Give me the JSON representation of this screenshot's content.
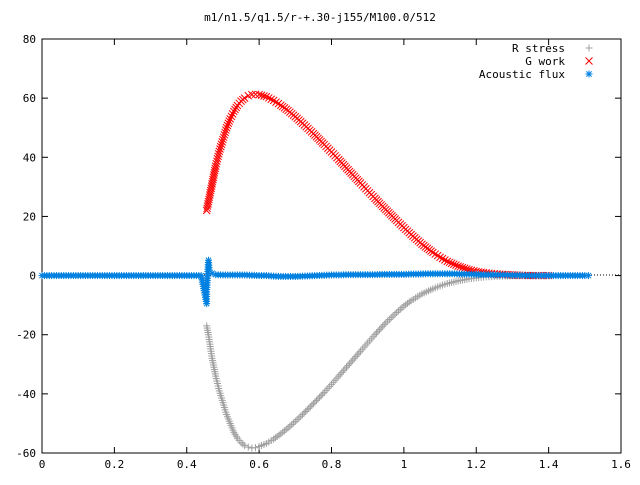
{
  "chart_data": {
    "type": "scatter",
    "title": "m1/n1.5/q1.5/r-+.30-j155/M100.0/512",
    "xlabel": "",
    "ylabel": "",
    "xlim": [
      0,
      1.6
    ],
    "ylim": [
      -60,
      80
    ],
    "x_ticks": [
      "0",
      "0.2",
      "0.4",
      "0.6",
      "0.8",
      "1",
      "1.2",
      "1.4",
      "1.6"
    ],
    "y_ticks": [
      "80",
      "60",
      "40",
      "20",
      "0",
      "-20",
      "-40",
      "-60"
    ],
    "grid": false,
    "legend_position": "top-right",
    "series": [
      {
        "name": "R stress",
        "marker": "plus",
        "color": "#a0a0a0",
        "x": [
          0.455,
          0.46,
          0.465,
          0.47,
          0.475,
          0.48,
          0.49,
          0.5,
          0.51,
          0.52,
          0.53,
          0.54,
          0.55,
          0.56,
          0.57,
          0.58,
          0.59,
          0.6,
          0.62,
          0.64,
          0.66,
          0.68,
          0.7,
          0.72,
          0.75,
          0.78,
          0.8,
          0.82,
          0.85,
          0.88,
          0.9,
          0.92,
          0.95,
          0.98,
          1.0,
          1.02,
          1.05,
          1.08,
          1.1,
          1.12,
          1.15,
          1.18,
          1.2,
          1.22,
          1.25,
          1.28,
          1.3,
          1.32,
          1.35,
          1.38,
          1.4
        ],
        "y": [
          -17,
          -20,
          -24,
          -28,
          -31,
          -34,
          -39,
          -43,
          -47,
          -50,
          -53,
          -55,
          -56.5,
          -57.5,
          -58,
          -58.3,
          -58.2,
          -57.8,
          -56.8,
          -55.3,
          -53.5,
          -51.5,
          -49.3,
          -47,
          -43.3,
          -39.5,
          -36.8,
          -34,
          -29.8,
          -25.6,
          -22.8,
          -20,
          -16,
          -12.5,
          -10.3,
          -8.5,
          -6.2,
          -4.5,
          -3.5,
          -2.7,
          -1.8,
          -1.1,
          -0.8,
          -0.5,
          -0.3,
          -0.15,
          -0.1,
          -0.05,
          0,
          0,
          0
        ]
      },
      {
        "name": "G work",
        "marker": "cross",
        "color": "#ff0000",
        "x": [
          0.455,
          0.46,
          0.465,
          0.47,
          0.475,
          0.48,
          0.49,
          0.5,
          0.51,
          0.52,
          0.53,
          0.54,
          0.55,
          0.56,
          0.57,
          0.58,
          0.59,
          0.6,
          0.62,
          0.64,
          0.66,
          0.68,
          0.7,
          0.72,
          0.75,
          0.78,
          0.8,
          0.82,
          0.85,
          0.88,
          0.9,
          0.92,
          0.95,
          0.98,
          1.0,
          1.02,
          1.05,
          1.08,
          1.1,
          1.12,
          1.15,
          1.18,
          1.2,
          1.22,
          1.25,
          1.28,
          1.3,
          1.32,
          1.35,
          1.38,
          1.4
        ],
        "y": [
          22,
          25,
          28,
          31,
          34,
          37,
          42,
          46,
          50,
          53,
          55.5,
          57.5,
          59,
          60,
          60.8,
          61.2,
          61.3,
          61.2,
          60.5,
          59.2,
          57.6,
          55.8,
          53.7,
          51.5,
          48,
          44.3,
          41.8,
          39.2,
          35.2,
          31.3,
          28.7,
          26.1,
          22.3,
          18.6,
          16.2,
          13.9,
          10.6,
          7.8,
          6.2,
          4.8,
          3.2,
          2,
          1.4,
          1,
          0.6,
          0.35,
          0.2,
          0.1,
          0,
          0,
          0
        ]
      },
      {
        "name": "Acoustic flux",
        "marker": "star",
        "color": "#0080e0",
        "x": [
          0,
          0.02,
          0.04,
          0.06,
          0.08,
          0.1,
          0.12,
          0.14,
          0.16,
          0.18,
          0.2,
          0.22,
          0.24,
          0.26,
          0.28,
          0.3,
          0.32,
          0.34,
          0.36,
          0.38,
          0.4,
          0.42,
          0.44,
          0.455,
          0.455,
          0.46,
          0.462,
          0.47,
          0.48,
          0.5,
          0.52,
          0.54,
          0.56,
          0.58,
          0.6,
          0.62,
          0.64,
          0.66,
          0.68,
          0.7,
          0.72,
          0.74,
          0.76,
          0.78,
          0.8,
          0.82,
          0.84,
          0.86,
          0.88,
          0.9,
          0.92,
          0.94,
          0.96,
          0.98,
          1.0,
          1.02,
          1.04,
          1.06,
          1.08,
          1.1,
          1.12,
          1.14,
          1.16,
          1.18,
          1.2,
          1.22,
          1.24,
          1.26,
          1.28,
          1.3,
          1.32,
          1.34,
          1.36,
          1.38,
          1.4,
          1.42,
          1.44,
          1.46,
          1.48,
          1.5,
          1.51
        ],
        "y": [
          0,
          0,
          0,
          0,
          0,
          0,
          0,
          0,
          0,
          0,
          0,
          0,
          0,
          0,
          0,
          0,
          0,
          0,
          0,
          0,
          0,
          0,
          0,
          -9.5,
          -5.5,
          5.2,
          1.8,
          0.8,
          0.3,
          0.2,
          0.2,
          0.2,
          0.2,
          0.1,
          0,
          0,
          -0.2,
          -0.3,
          -0.3,
          -0.3,
          -0.2,
          -0.1,
          0,
          0.1,
          0.2,
          0.2,
          0.3,
          0.3,
          0.3,
          0.3,
          0.3,
          0.4,
          0.4,
          0.4,
          0.4,
          0.5,
          0.5,
          0.6,
          0.6,
          0.6,
          0.6,
          0.6,
          0.5,
          0.5,
          0.4,
          0.3,
          0.3,
          0.2,
          0.2,
          0.1,
          0.1,
          0,
          0,
          0,
          0,
          0,
          0,
          0,
          0,
          0,
          0
        ]
      }
    ]
  }
}
